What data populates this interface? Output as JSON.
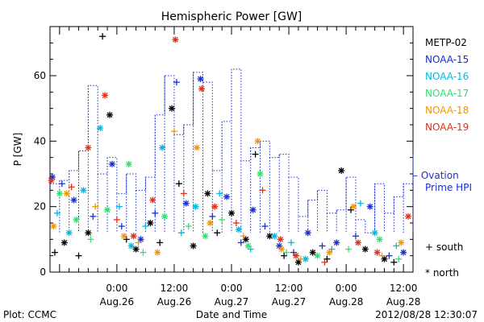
{
  "chart_data": {
    "type": "scatter",
    "title": "Hemispheric Power [GW]",
    "xlabel": "Date and Time",
    "ylabel": "P [GW]",
    "ylim": [
      0,
      75
    ],
    "yticks": [
      0,
      20,
      40,
      60
    ],
    "xlim": [
      "2012-08-25T10:00",
      "2012-08-28T14:00"
    ],
    "xticks": [
      {
        "time": "2012-08-26T00:00",
        "line1": "0:00",
        "line2": "Aug.26"
      },
      {
        "time": "2012-08-26T12:00",
        "line1": "12:00",
        "line2": "Aug.26"
      },
      {
        "time": "2012-08-27T00:00",
        "line1": "0:00",
        "line2": "Aug.27"
      },
      {
        "time": "2012-08-27T12:00",
        "line1": "12:00",
        "line2": "Aug.27"
      },
      {
        "time": "2012-08-28T00:00",
        "line1": "0:00",
        "line2": "Aug.28"
      },
      {
        "time": "2012-08-28T12:00",
        "line1": "12:00",
        "line2": "Aug.28"
      }
    ],
    "series": [
      {
        "name": "METP-02",
        "color": "#000000",
        "points": [
          [
            "2012-08-25T11:00",
            6,
            "south"
          ],
          [
            "2012-08-25T13:00",
            9,
            "north"
          ],
          [
            "2012-08-25T16:00",
            5,
            "south"
          ],
          [
            "2012-08-25T18:00",
            12,
            "north"
          ],
          [
            "2012-08-25T21:00",
            72,
            "south"
          ],
          [
            "2012-08-25T22:30",
            48,
            "north"
          ],
          [
            "2012-08-26T02:00",
            10,
            "south"
          ],
          [
            "2012-08-26T04:00",
            7,
            "north"
          ],
          [
            "2012-08-26T07:00",
            15,
            "north"
          ],
          [
            "2012-08-26T09:00",
            9,
            "south"
          ],
          [
            "2012-08-26T11:30",
            50,
            "north"
          ],
          [
            "2012-08-26T13:00",
            27,
            "south"
          ],
          [
            "2012-08-26T16:00",
            8,
            "north"
          ],
          [
            "2012-08-26T19:00",
            24,
            "north"
          ],
          [
            "2012-08-26T21:00",
            12,
            "south"
          ],
          [
            "2012-08-27T00:00",
            18,
            "north"
          ],
          [
            "2012-08-27T03:00",
            10,
            "north"
          ],
          [
            "2012-08-27T05:00",
            36,
            "south"
          ],
          [
            "2012-08-27T08:00",
            11,
            "north"
          ],
          [
            "2012-08-27T11:00",
            5,
            "south"
          ],
          [
            "2012-08-27T14:00",
            3,
            "north"
          ],
          [
            "2012-08-27T17:00",
            6,
            "north"
          ],
          [
            "2012-08-27T20:00",
            4,
            "south"
          ],
          [
            "2012-08-27T23:00",
            31,
            "north"
          ],
          [
            "2012-08-28T01:00",
            19,
            "south"
          ],
          [
            "2012-08-28T04:00",
            7,
            "north"
          ],
          [
            "2012-08-28T08:00",
            4,
            "north"
          ],
          [
            "2012-08-28T10:00",
            3,
            "south"
          ]
        ]
      },
      {
        "name": "NOAA-15",
        "color": "#1a2fd0",
        "points": [
          [
            "2012-08-25T10:30",
            29,
            "north"
          ],
          [
            "2012-08-25T12:30",
            27,
            "south"
          ],
          [
            "2012-08-25T15:00",
            22,
            "north"
          ],
          [
            "2012-08-25T19:00",
            17,
            "south"
          ],
          [
            "2012-08-25T23:00",
            33,
            "north"
          ],
          [
            "2012-08-26T01:00",
            14,
            "south"
          ],
          [
            "2012-08-26T05:00",
            10,
            "north"
          ],
          [
            "2012-08-26T08:00",
            18,
            "south"
          ],
          [
            "2012-08-26T12:30",
            58,
            "south"
          ],
          [
            "2012-08-26T14:30",
            21,
            "north"
          ],
          [
            "2012-08-26T17:30",
            59,
            "north"
          ],
          [
            "2012-08-26T20:00",
            17,
            "south"
          ],
          [
            "2012-08-26T23:00",
            23,
            "north"
          ],
          [
            "2012-08-27T02:00",
            9,
            "south"
          ],
          [
            "2012-08-27T04:30",
            19,
            "north"
          ],
          [
            "2012-08-27T07:00",
            14,
            "south"
          ],
          [
            "2012-08-27T10:00",
            8,
            "north"
          ],
          [
            "2012-08-27T13:00",
            6,
            "south"
          ],
          [
            "2012-08-27T16:00",
            12,
            "north"
          ],
          [
            "2012-08-27T19:00",
            8,
            "south"
          ],
          [
            "2012-08-27T22:00",
            9,
            "north"
          ],
          [
            "2012-08-28T02:00",
            11,
            "south"
          ],
          [
            "2012-08-28T05:00",
            20,
            "north"
          ],
          [
            "2012-08-28T09:00",
            5,
            "south"
          ],
          [
            "2012-08-28T12:00",
            6,
            "north"
          ]
        ]
      },
      {
        "name": "NOAA-16",
        "color": "#00b8e0",
        "points": [
          [
            "2012-08-25T11:30",
            18,
            "south"
          ],
          [
            "2012-08-25T14:00",
            12,
            "north"
          ],
          [
            "2012-08-25T17:00",
            25,
            "north"
          ],
          [
            "2012-08-25T20:30",
            44,
            "north"
          ],
          [
            "2012-08-26T00:30",
            20,
            "south"
          ],
          [
            "2012-08-26T03:00",
            8,
            "north"
          ],
          [
            "2012-08-26T06:00",
            14,
            "south"
          ],
          [
            "2012-08-26T09:30",
            38,
            "north"
          ],
          [
            "2012-08-26T13:30",
            12,
            "south"
          ],
          [
            "2012-08-26T16:30",
            20,
            "north"
          ],
          [
            "2012-08-26T21:30",
            24,
            "south"
          ],
          [
            "2012-08-27T01:30",
            13,
            "north"
          ],
          [
            "2012-08-27T04:00",
            7,
            "south"
          ],
          [
            "2012-08-27T09:00",
            11,
            "north"
          ],
          [
            "2012-08-27T12:30",
            9,
            "south"
          ],
          [
            "2012-08-27T15:30",
            4,
            "north"
          ],
          [
            "2012-08-27T21:00",
            7,
            "south"
          ],
          [
            "2012-08-28T03:00",
            21,
            "south"
          ],
          [
            "2012-08-28T06:00",
            12,
            "north"
          ],
          [
            "2012-08-28T10:30",
            8,
            "south"
          ]
        ]
      },
      {
        "name": "NOAA-17",
        "color": "#30e070",
        "points": [
          [
            "2012-08-25T12:00",
            24,
            "north"
          ],
          [
            "2012-08-25T15:30",
            16,
            "north"
          ],
          [
            "2012-08-25T18:30",
            10,
            "south"
          ],
          [
            "2012-08-25T22:00",
            19,
            "north"
          ],
          [
            "2012-08-26T02:30",
            33,
            "north"
          ],
          [
            "2012-08-26T05:30",
            6,
            "south"
          ],
          [
            "2012-08-26T10:00",
            17,
            "north"
          ],
          [
            "2012-08-26T15:00",
            14,
            "south"
          ],
          [
            "2012-08-26T18:30",
            11,
            "north"
          ],
          [
            "2012-08-26T22:00",
            16,
            "south"
          ],
          [
            "2012-08-27T03:30",
            8,
            "north"
          ],
          [
            "2012-08-27T06:00",
            30,
            "north"
          ],
          [
            "2012-08-27T11:30",
            6,
            "south"
          ],
          [
            "2012-08-27T18:00",
            5,
            "north"
          ],
          [
            "2012-08-28T00:30",
            7,
            "south"
          ],
          [
            "2012-08-28T07:00",
            10,
            "north"
          ],
          [
            "2012-08-28T11:00",
            4,
            "south"
          ]
        ]
      },
      {
        "name": "NOAA-18",
        "color": "#f0960a",
        "points": [
          [
            "2012-08-25T10:45",
            14,
            "north"
          ],
          [
            "2012-08-25T13:30",
            24,
            "north"
          ],
          [
            "2012-08-25T19:30",
            20,
            "south"
          ],
          [
            "2012-08-26T01:30",
            11,
            "north"
          ],
          [
            "2012-08-26T04:30",
            9,
            "south"
          ],
          [
            "2012-08-26T08:30",
            6,
            "north"
          ],
          [
            "2012-08-26T12:00",
            43,
            "south"
          ],
          [
            "2012-08-26T16:45",
            38,
            "north"
          ],
          [
            "2012-08-26T19:30",
            15,
            "north"
          ],
          [
            "2012-08-27T02:30",
            11,
            "south"
          ],
          [
            "2012-08-27T05:30",
            40,
            "north"
          ],
          [
            "2012-08-27T10:30",
            7,
            "north"
          ],
          [
            "2012-08-27T14:30",
            4,
            "south"
          ],
          [
            "2012-08-27T20:30",
            6,
            "north"
          ],
          [
            "2012-08-28T01:30",
            20,
            "north"
          ],
          [
            "2012-08-28T07:30",
            5,
            "south"
          ],
          [
            "2012-08-28T11:30",
            9,
            "north"
          ]
        ]
      },
      {
        "name": "NOAA-19",
        "color": "#e03018",
        "points": [
          [
            "2012-08-25T10:15",
            28,
            "north"
          ],
          [
            "2012-08-25T14:30",
            26,
            "south"
          ],
          [
            "2012-08-25T18:00",
            38,
            "north"
          ],
          [
            "2012-08-25T21:30",
            54,
            "north"
          ],
          [
            "2012-08-26T00:00",
            16,
            "south"
          ],
          [
            "2012-08-26T03:30",
            11,
            "north"
          ],
          [
            "2012-08-26T07:30",
            22,
            "north"
          ],
          [
            "2012-08-26T12:15",
            71,
            "north"
          ],
          [
            "2012-08-26T14:00",
            24,
            "south"
          ],
          [
            "2012-08-26T17:45",
            56,
            "north"
          ],
          [
            "2012-08-26T20:30",
            20,
            "north"
          ],
          [
            "2012-08-27T01:00",
            15,
            "south"
          ],
          [
            "2012-08-27T06:30",
            25,
            "south"
          ],
          [
            "2012-08-27T10:15",
            10,
            "north"
          ],
          [
            "2012-08-27T13:30",
            5,
            "north"
          ],
          [
            "2012-08-27T19:30",
            3,
            "south"
          ],
          [
            "2012-08-28T02:30",
            9,
            "north"
          ],
          [
            "2012-08-28T06:30",
            6,
            "north"
          ],
          [
            "2012-08-28T13:00",
            17,
            "north"
          ]
        ]
      }
    ],
    "ovation_series": {
      "name": "Ovation Prime HPI",
      "color": "#1a2fd0",
      "points": [
        [
          "2012-08-25T10:00",
          27
        ],
        [
          "2012-08-25T12:00",
          28
        ],
        [
          "2012-08-25T14:00",
          31
        ],
        [
          "2012-08-25T16:00",
          37
        ],
        [
          "2012-08-25T18:00",
          57
        ],
        [
          "2012-08-25T20:00",
          30
        ],
        [
          "2012-08-25T22:00",
          35
        ],
        [
          "2012-08-26T00:00",
          24
        ],
        [
          "2012-08-26T02:00",
          30
        ],
        [
          "2012-08-26T04:00",
          25
        ],
        [
          "2012-08-26T06:00",
          29
        ],
        [
          "2012-08-26T08:00",
          48
        ],
        [
          "2012-08-26T10:00",
          60
        ],
        [
          "2012-08-26T12:00",
          42
        ],
        [
          "2012-08-26T14:00",
          45
        ],
        [
          "2012-08-26T16:00",
          61
        ],
        [
          "2012-08-26T18:00",
          58
        ],
        [
          "2012-08-26T20:00",
          31
        ],
        [
          "2012-08-26T22:00",
          46
        ],
        [
          "2012-08-27T00:00",
          62
        ],
        [
          "2012-08-27T02:00",
          34
        ],
        [
          "2012-08-27T04:00",
          38
        ],
        [
          "2012-08-27T06:00",
          40
        ],
        [
          "2012-08-27T08:00",
          35
        ],
        [
          "2012-08-27T10:00",
          36
        ],
        [
          "2012-08-27T12:00",
          29
        ],
        [
          "2012-08-27T14:00",
          17
        ],
        [
          "2012-08-27T16:00",
          22
        ],
        [
          "2012-08-27T18:00",
          25
        ],
        [
          "2012-08-27T20:00",
          18
        ],
        [
          "2012-08-27T22:00",
          19
        ],
        [
          "2012-08-28T00:00",
          29
        ],
        [
          "2012-08-28T02:00",
          16
        ],
        [
          "2012-08-28T04:00",
          12
        ],
        [
          "2012-08-28T06:00",
          27
        ],
        [
          "2012-08-28T08:00",
          18
        ],
        [
          "2012-08-28T10:00",
          23
        ],
        [
          "2012-08-28T12:00",
          27
        ],
        [
          "2012-08-28T14:00",
          36
        ]
      ]
    },
    "legend_symbols": {
      "south": "+ south",
      "north": "* north"
    },
    "grid": false,
    "legend_position": "right"
  },
  "footer": {
    "left": "Plot: CCMC",
    "right": "2012/08/28 12:30:07"
  }
}
